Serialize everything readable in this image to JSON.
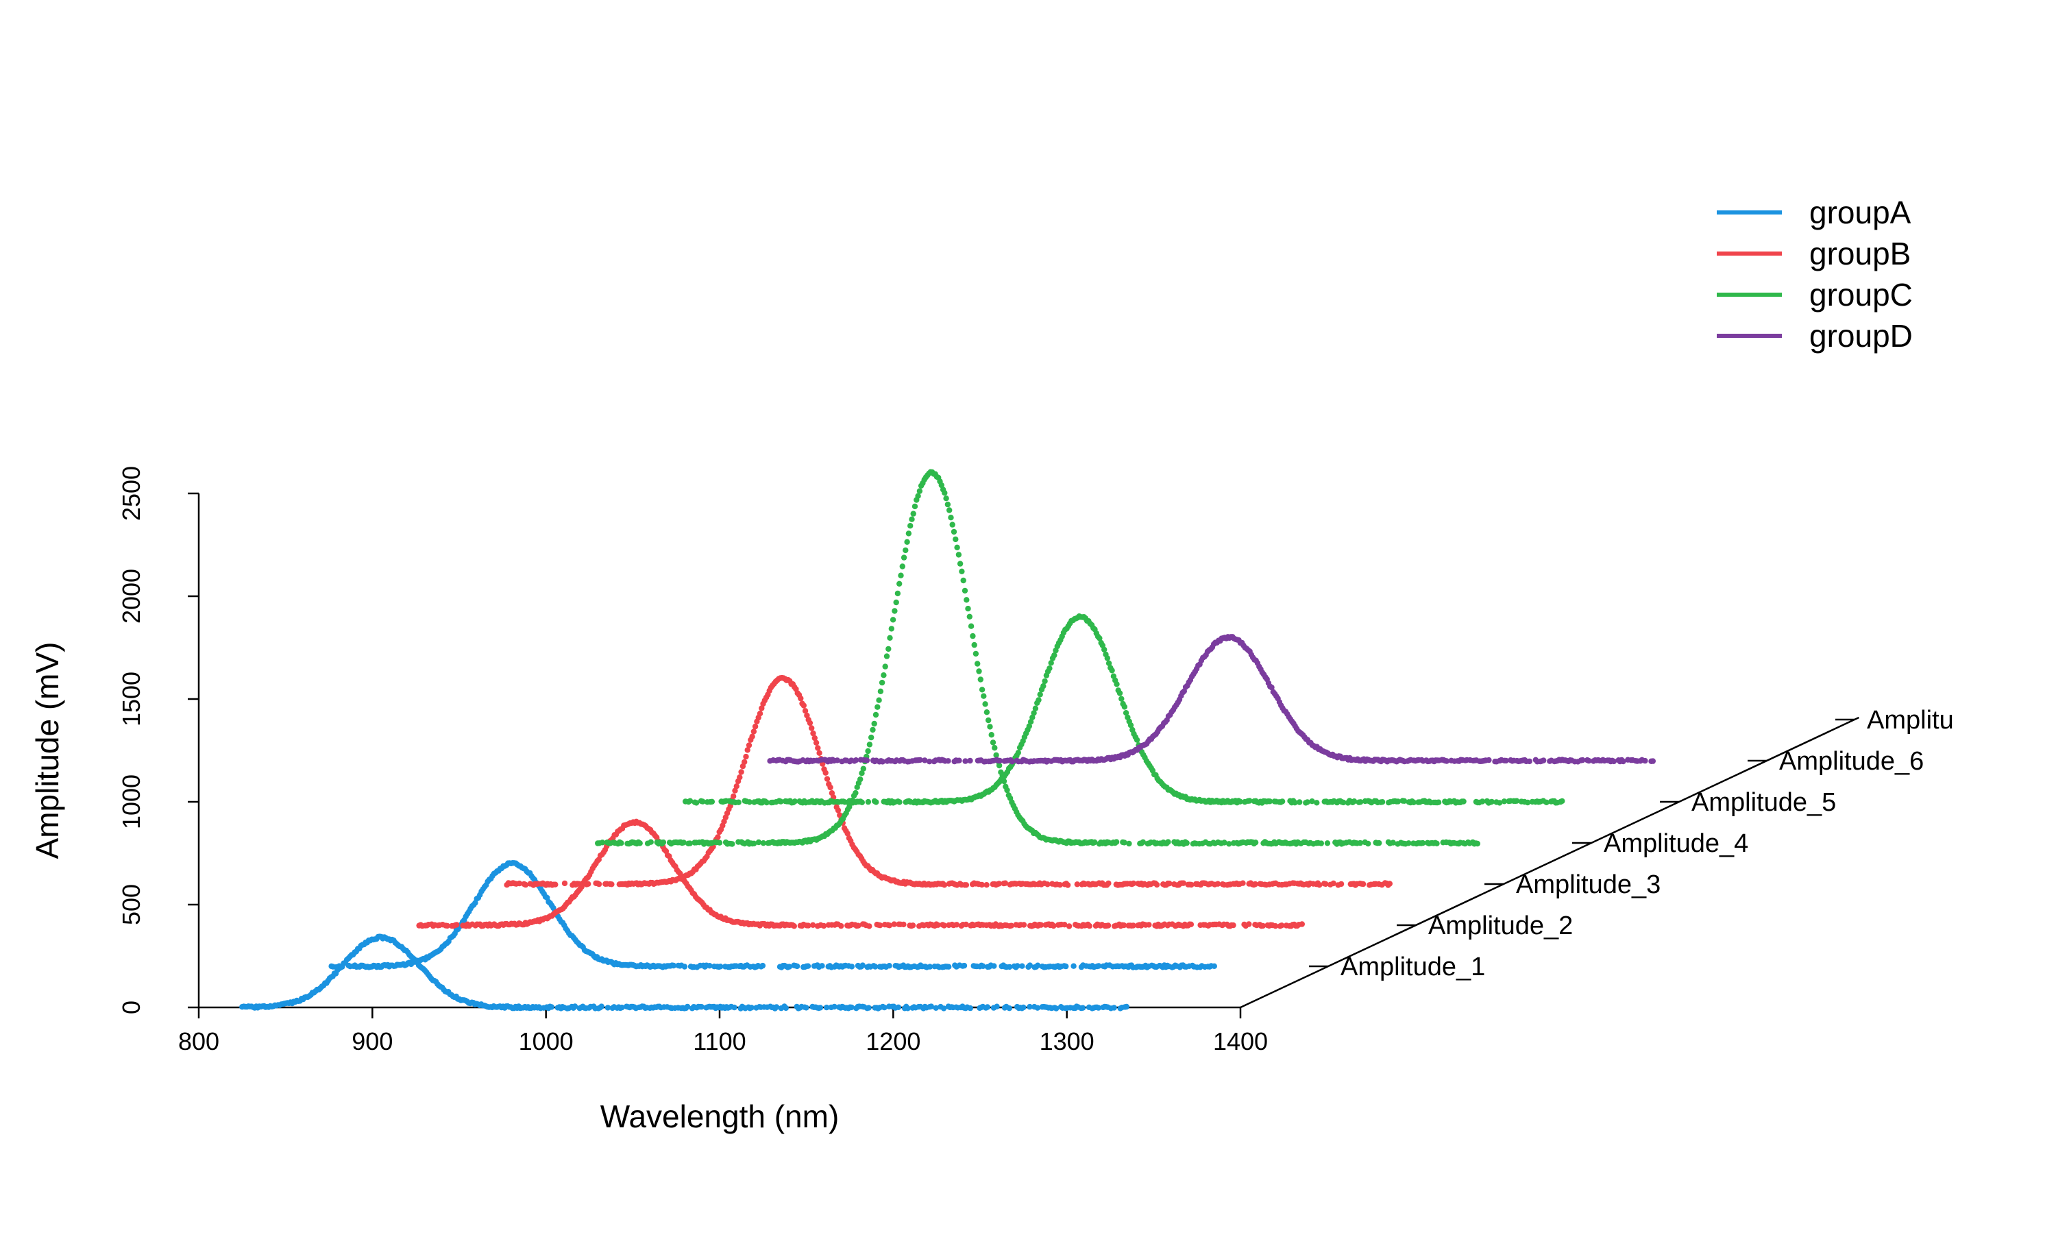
{
  "chart_data": {
    "type": "scatter",
    "xlabel": "Wavelength (nm)",
    "ylabel": "Amplitude (mV)",
    "xlim": [
      800,
      1400
    ],
    "ylim": [
      0,
      2500
    ],
    "x_ticks": [
      "800",
      "900",
      "1000",
      "1100",
      "1200",
      "1300",
      "1400"
    ],
    "y_ticks": [
      "0",
      "500",
      "1000",
      "1500",
      "2000",
      "2500"
    ],
    "depth_axis_ticks": [
      "Amplitude_1",
      "Amplitude_2",
      "Amplitude_3",
      "Amplitude_4",
      "Amplitude_5",
      "Amplitude_6",
      "Amplitu"
    ],
    "legend_position": "top-right",
    "legend": [
      {
        "name": "groupA",
        "color": "#1b93e0"
      },
      {
        "name": "groupB",
        "color": "#f0444b"
      },
      {
        "name": "groupC",
        "color": "#2fb84b"
      },
      {
        "name": "groupD",
        "color": "#7b3c9e"
      }
    ],
    "series": [
      {
        "group": "groupA",
        "depth": 1,
        "x_range": [
          825,
          1335
        ],
        "baseline": 0,
        "peak_x": 905,
        "peak_height": 340,
        "width_sd": 22
      },
      {
        "group": "groupA",
        "depth": 2,
        "x_range": [
          825,
          1335
        ],
        "baseline": 0,
        "peak_x": 930,
        "peak_height": 500,
        "width_sd": 22
      },
      {
        "group": "groupB",
        "depth": 3,
        "x_range": [
          825,
          1335
        ],
        "baseline": 0,
        "peak_x": 950,
        "peak_height": 500,
        "width_sd": 22
      },
      {
        "group": "groupB",
        "depth": 4,
        "x_range": [
          825,
          1335
        ],
        "baseline": 0,
        "peak_x": 985,
        "peak_height": 1000,
        "width_sd": 22
      },
      {
        "group": "groupC",
        "depth": 5,
        "x_range": [
          825,
          1335
        ],
        "baseline": 0,
        "peak_x": 1020,
        "peak_height": 1800,
        "width_sd": 22
      },
      {
        "group": "groupC",
        "depth": 6,
        "x_range": [
          825,
          1335
        ],
        "baseline": 0,
        "peak_x": 1055,
        "peak_height": 900,
        "width_sd": 22
      },
      {
        "group": "groupD",
        "depth": 7,
        "x_range": [
          825,
          1335
        ],
        "baseline": 0,
        "peak_x": 1090,
        "peak_height": 600,
        "width_sd": 24
      }
    ]
  }
}
